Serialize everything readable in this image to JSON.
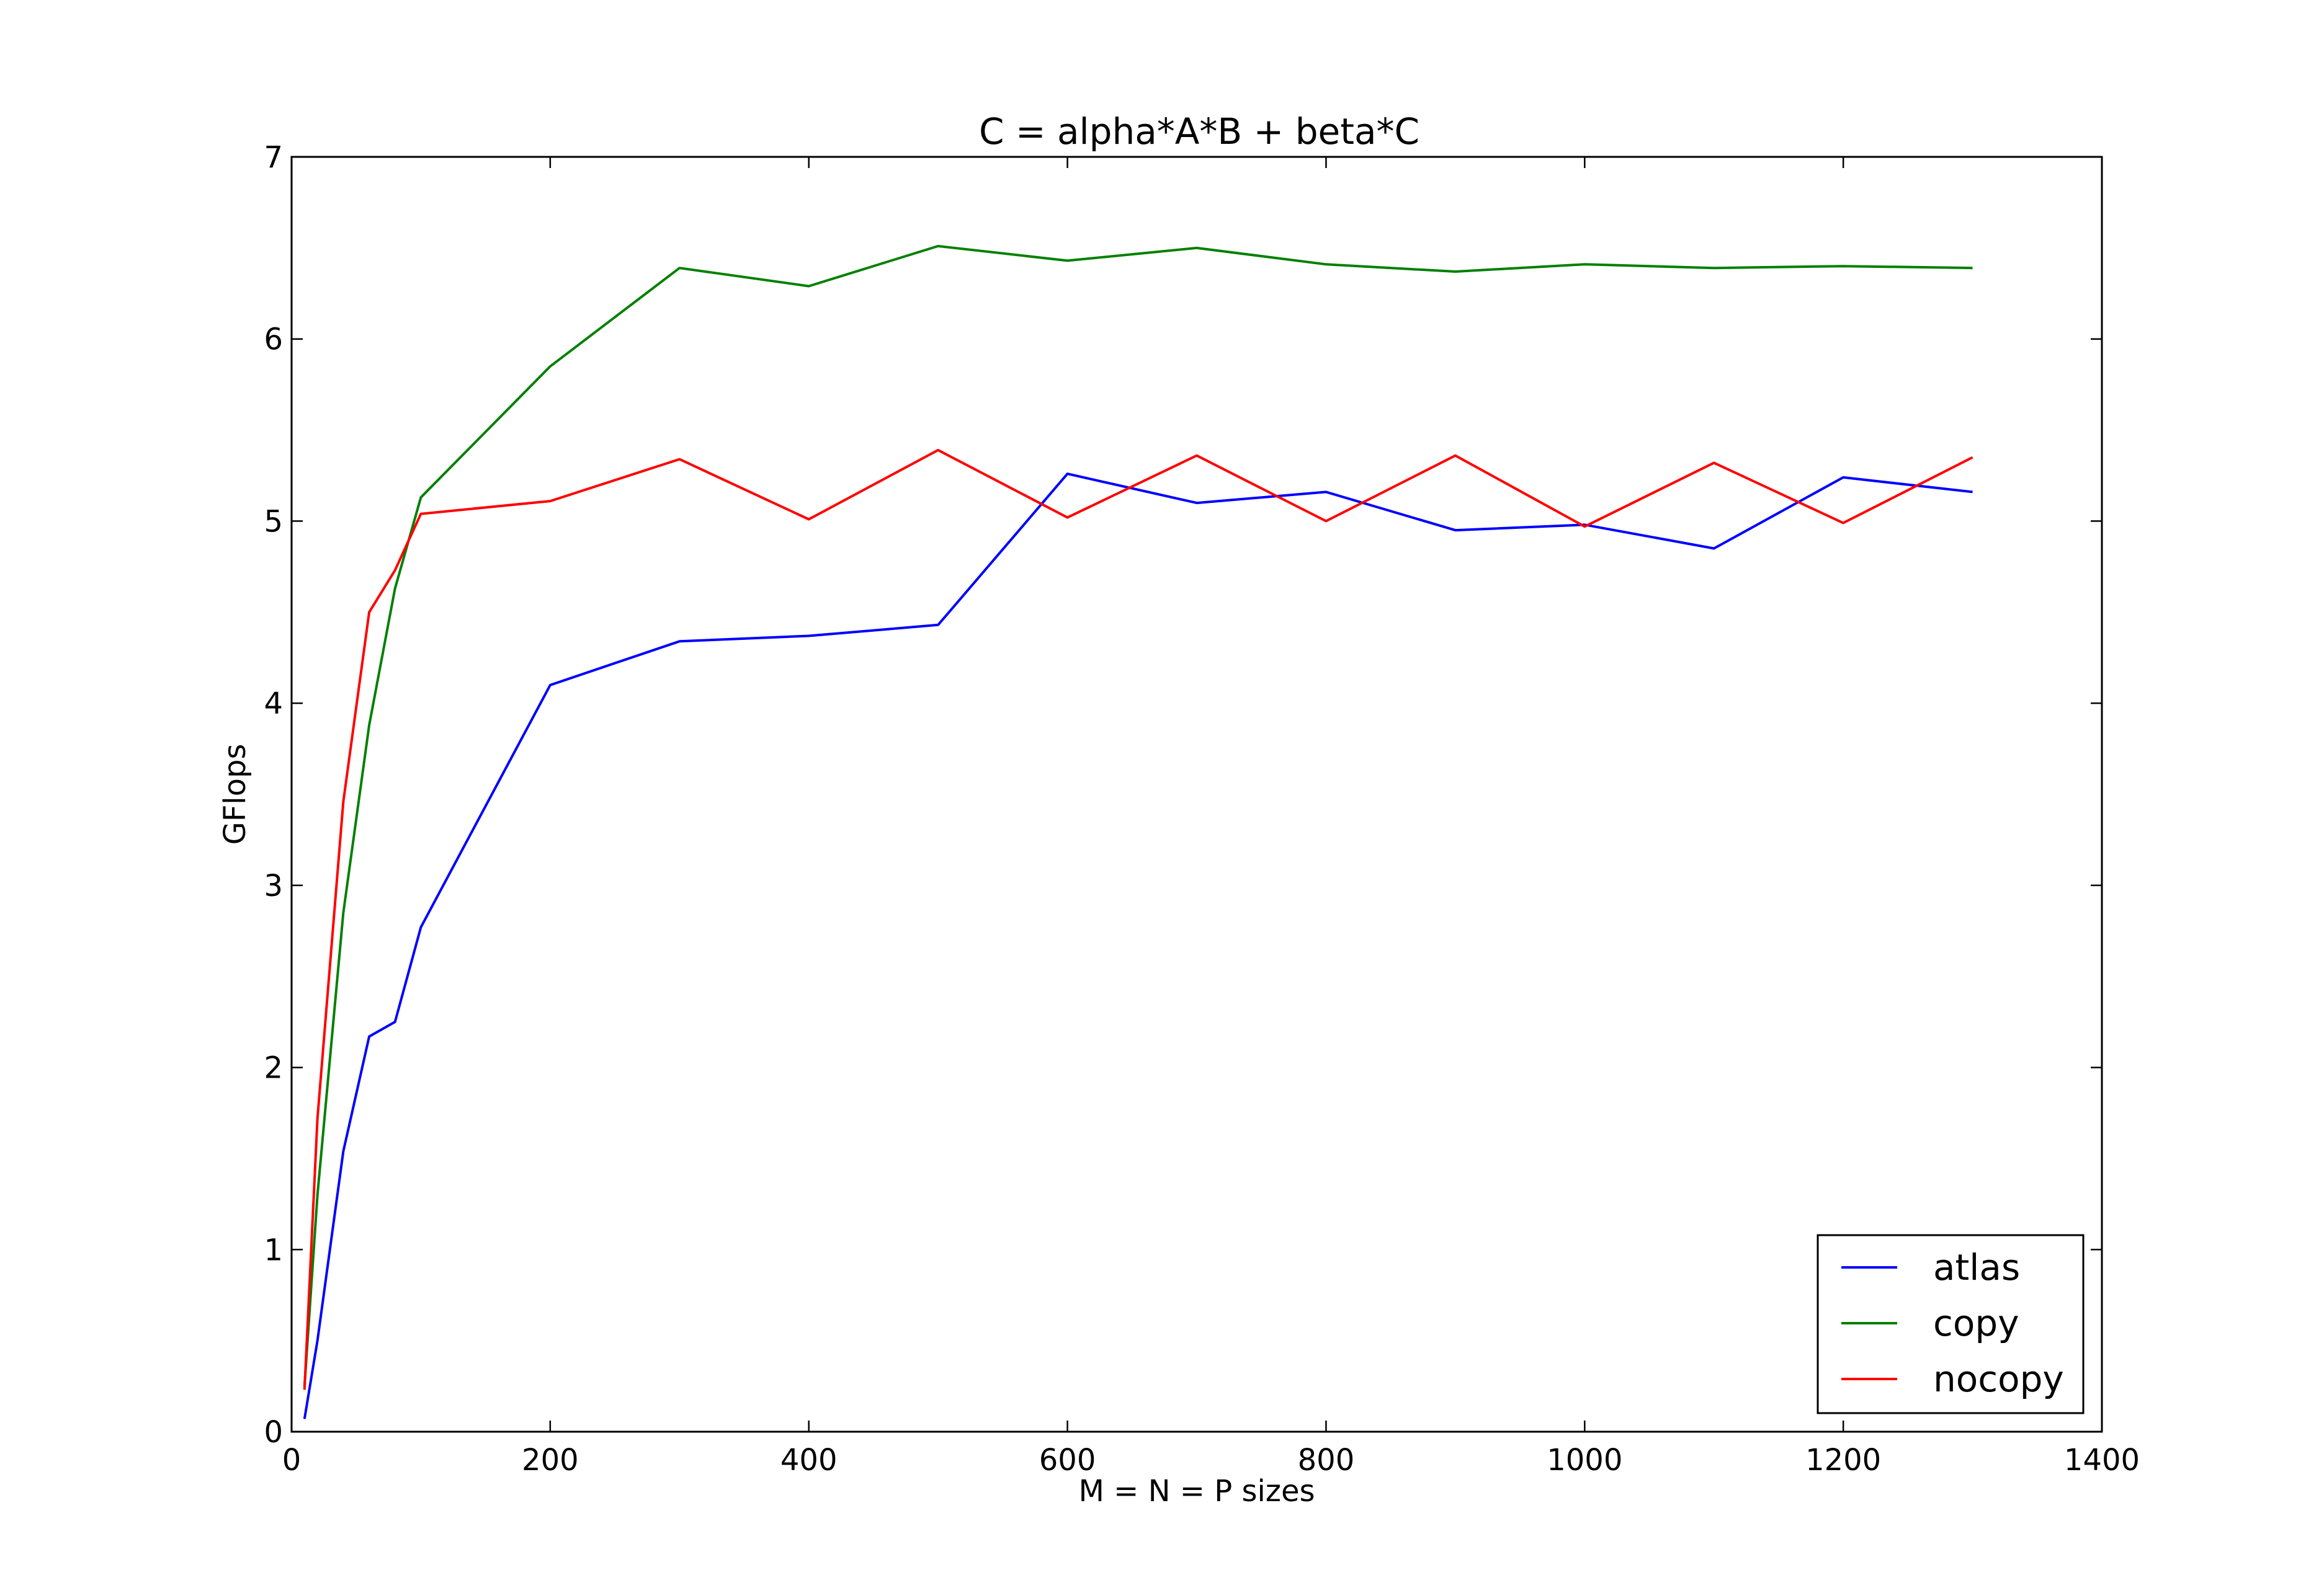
{
  "chart_data": {
    "type": "line",
    "title": "C = alpha*A*B + beta*C",
    "xlabel": "M = N = P sizes",
    "ylabel": "GFlops",
    "xlim": [
      0,
      1400
    ],
    "ylim": [
      0,
      7
    ],
    "xticks": [
      0,
      200,
      400,
      600,
      800,
      1000,
      1200,
      1400
    ],
    "yticks": [
      0,
      1,
      2,
      3,
      4,
      5,
      6,
      7
    ],
    "grid": false,
    "legend_position": "lower-right",
    "series": [
      {
        "name": "atlas",
        "color": "#0000ff",
        "x": [
          10,
          20,
          40,
          60,
          80,
          100,
          200,
          300,
          400,
          500,
          600,
          700,
          800,
          900,
          1000,
          1100,
          1200,
          1300
        ],
        "y": [
          0.07,
          0.5,
          1.54,
          2.17,
          2.25,
          2.77,
          4.1,
          4.34,
          4.37,
          4.43,
          5.26,
          5.1,
          5.16,
          4.95,
          4.98,
          4.85,
          5.24,
          5.16
        ]
      },
      {
        "name": "copy",
        "color": "#008000",
        "x": [
          10,
          20,
          40,
          60,
          80,
          100,
          200,
          300,
          400,
          500,
          600,
          700,
          800,
          900,
          1000,
          1100,
          1200,
          1300
        ],
        "y": [
          0.25,
          1.3,
          2.85,
          3.88,
          4.63,
          5.13,
          5.85,
          6.39,
          6.29,
          6.51,
          6.43,
          6.5,
          6.41,
          6.37,
          6.41,
          6.39,
          6.4,
          6.39
        ]
      },
      {
        "name": "nocopy",
        "color": "#ff0000",
        "x": [
          10,
          20,
          40,
          60,
          80,
          100,
          200,
          300,
          400,
          500,
          600,
          700,
          800,
          900,
          1000,
          1100,
          1200,
          1300
        ],
        "y": [
          0.23,
          1.72,
          3.46,
          4.5,
          4.73,
          5.04,
          5.11,
          5.34,
          5.01,
          5.39,
          5.02,
          5.36,
          5.0,
          5.36,
          4.97,
          5.32,
          4.99,
          5.35
        ]
      }
    ]
  }
}
